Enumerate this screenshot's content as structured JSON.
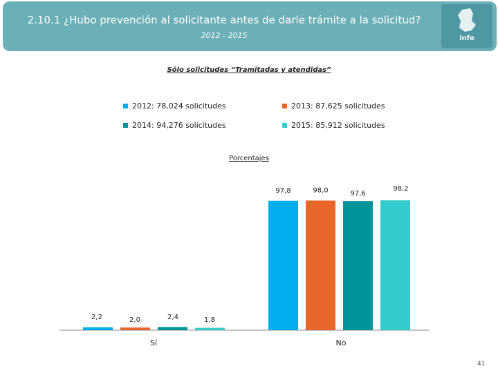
{
  "header": {
    "title": "2.10.1 ¿Hubo prevención al solicitante antes de darle trámite a la solicitud?",
    "period": "2012 - 2015",
    "logo": "info"
  },
  "subtitle": "Sólo solicitudes “Tramitadas y atendidas”",
  "legend": [
    {
      "label": "2012: 78,024 solicitudes",
      "color": "#00aeef"
    },
    {
      "label": "2013: 87,625 solicitudes",
      "color": "#e8662a"
    },
    {
      "label": "2014: 94,276 solicitudes",
      "color": "#00939a"
    },
    {
      "label": "2015: 85,912 solicitudes",
      "color": "#33cccc"
    }
  ],
  "percent_label": "Porcentajes",
  "page_number": "41",
  "chart_data": {
    "type": "bar",
    "title": "Sólo solicitudes “Tramitadas y atendidas”",
    "ylabel": "Porcentajes",
    "categories": [
      "Sí",
      "No"
    ],
    "series": [
      {
        "name": "2012: 78,024 solicitudes",
        "values": [
          2.2,
          97.8
        ],
        "labels": [
          "2,2",
          "97,8"
        ],
        "color": "#00aeef"
      },
      {
        "name": "2013: 87,625 solicitudes",
        "values": [
          2.0,
          98.0
        ],
        "labels": [
          "2,0",
          "98,0"
        ],
        "color": "#e8662a"
      },
      {
        "name": "2014: 94,276 solicitudes",
        "values": [
          2.4,
          97.6
        ],
        "labels": [
          "2,4",
          "97,6"
        ],
        "color": "#00939a"
      },
      {
        "name": "2015: 85,912 solicitudes",
        "values": [
          1.8,
          98.2
        ],
        "labels": [
          "1,8",
          "98,2"
        ],
        "color": "#33cccc"
      }
    ],
    "ylim": [
      0,
      100
    ]
  }
}
